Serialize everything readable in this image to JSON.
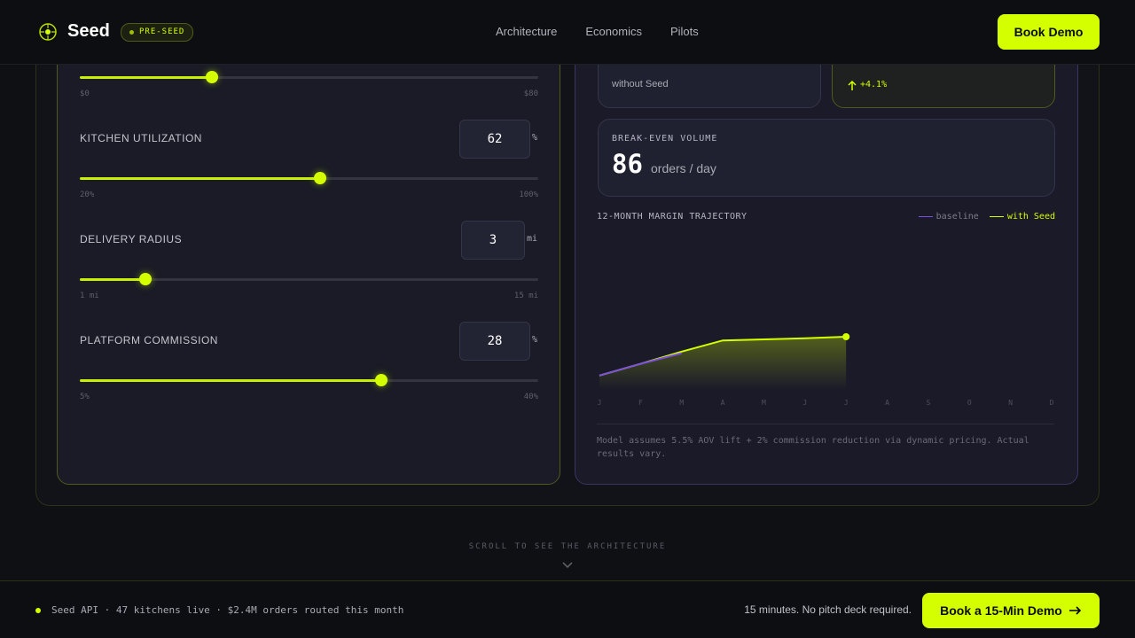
{
  "nav": {
    "brand": "Seed",
    "badge": "PRE-SEED",
    "links": [
      "Architecture",
      "Economics",
      "Pilots"
    ],
    "cta": "Book Demo"
  },
  "sliders": [
    {
      "min": {
        "value": 0,
        "label": "$0"
      },
      "max": {
        "value": 80,
        "label": "$80"
      },
      "value": 23
    },
    {
      "label": "KITCHEN UTILIZATION",
      "value": 62,
      "unit": "%",
      "min": {
        "value": 20,
        "label": "20%"
      },
      "max": {
        "value": 100,
        "label": "100%"
      }
    },
    {
      "label": "DELIVERY RADIUS",
      "value": 3,
      "unit": "mi",
      "min": {
        "value": 1,
        "label": "1 mi"
      },
      "max": {
        "value": 15,
        "label": "15 mi"
      }
    },
    {
      "label": "PLATFORM COMMISSION",
      "value": 28,
      "unit": "%",
      "min": {
        "value": 5,
        "label": "5%"
      },
      "max": {
        "value": 40,
        "label": "40%"
      }
    }
  ],
  "metrics": {
    "baseline_caption": "without Seed",
    "seed_delta": "+4.1%",
    "break_even": {
      "label": "BREAK-EVEN VOLUME",
      "value": 86,
      "unit": "orders / day"
    }
  },
  "chart_data": {
    "type": "line",
    "title": "12-MONTH MARGIN TRAJECTORY",
    "categories": [
      "J",
      "F",
      "M",
      "A",
      "M",
      "J",
      "J",
      "A",
      "S",
      "O",
      "N",
      "D"
    ],
    "ylim": [
      10,
      40
    ],
    "series": [
      {
        "name": "baseline",
        "color": "#7b4fe0",
        "values": [
          12.7,
          14.9,
          16.9,
          null,
          null,
          null,
          null,
          null,
          null,
          null,
          null,
          null
        ]
      },
      {
        "name": "with Seed",
        "color": "#d4ff00",
        "values": [
          12.7,
          14.9,
          17.2,
          19.3,
          19.5,
          19.7,
          20.0,
          null,
          null,
          null,
          null,
          null
        ]
      }
    ],
    "note": "Model assumes 5.5% AOV lift + 2% commission reduction via dynamic pricing. Actual results vary."
  },
  "scroll_hint": "SCROLL TO SEE THE ARCHITECTURE",
  "footer": {
    "status": "Seed API · 47 kitchens live · $2.4M orders routed this month",
    "tagline": "15 minutes. No pitch deck required.",
    "cta": "Book a 15-Min Demo"
  }
}
